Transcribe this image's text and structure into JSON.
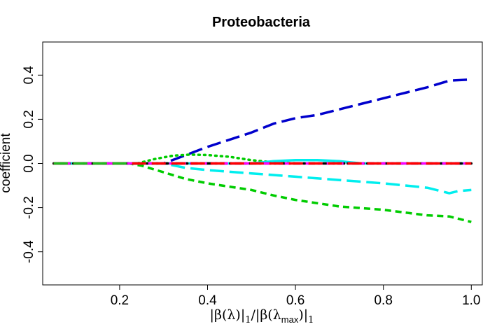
{
  "chart_data": {
    "type": "line",
    "title": "Proteobacteria",
    "xlabel": "|β(λ)|1/|β(λmax)|1",
    "xlabel_parts": {
      "bar1": "|",
      "beta1": "β(λ)",
      "bar2": "|",
      "sub1": "1",
      "slash": "/",
      "bar3": "|",
      "beta2": "β(λ",
      "sub_max": "max",
      "close": ")",
      "bar4": "|",
      "sub2": "1"
    },
    "ylabel": "coefficient",
    "xlim": [
      0.025,
      1.025
    ],
    "ylim": [
      -0.55,
      0.55
    ],
    "xticks": [
      0.2,
      0.4,
      0.6,
      0.8,
      1.0
    ],
    "xtick_labels": [
      "0.2",
      "0.4",
      "0.6",
      "0.8",
      "1.0"
    ],
    "yticks": [
      -0.4,
      -0.2,
      0.0,
      0.2,
      0.4
    ],
    "ytick_labels": [
      "-0.4",
      "-0.2",
      "0.0",
      "0.2",
      "0.4"
    ],
    "grid": false,
    "series": [
      {
        "color": "#0000cc",
        "dash": "long",
        "x": [
          0.05,
          0.3,
          0.4,
          0.5,
          0.55,
          0.6,
          0.65,
          0.7,
          0.8,
          0.9,
          0.95,
          1.0
        ],
        "y": [
          0.0,
          0.0,
          0.075,
          0.14,
          0.18,
          0.205,
          0.22,
          0.245,
          0.295,
          0.345,
          0.375,
          0.38
        ]
      },
      {
        "color": "#00cc00",
        "dash": "short",
        "x": [
          0.05,
          0.22,
          0.25,
          0.3,
          0.35,
          0.4,
          0.5,
          0.55,
          0.6,
          0.7,
          0.8,
          0.9,
          0.95,
          1.0
        ],
        "y": [
          0.0,
          0.0,
          -0.01,
          -0.04,
          -0.07,
          -0.09,
          -0.12,
          -0.145,
          -0.165,
          -0.195,
          -0.21,
          -0.235,
          -0.24,
          -0.265
        ]
      },
      {
        "color": "#00eeee",
        "dash": "long",
        "x": [
          0.05,
          0.3,
          0.35,
          0.4,
          0.5,
          0.6,
          0.7,
          0.8,
          0.9,
          0.95,
          0.97,
          1.0
        ],
        "y": [
          0.0,
          0.0,
          -0.02,
          -0.03,
          -0.045,
          -0.06,
          -0.075,
          -0.09,
          -0.11,
          -0.135,
          -0.125,
          -0.12
        ]
      },
      {
        "color": "#00cc00",
        "dash": "dotted",
        "x": [
          0.05,
          0.24,
          0.28,
          0.32,
          0.36,
          0.4,
          0.45,
          0.5,
          0.55,
          0.6
        ],
        "y": [
          0.0,
          0.0,
          0.02,
          0.035,
          0.04,
          0.038,
          0.03,
          0.015,
          0.005,
          0.0
        ]
      },
      {
        "color": "#00eeee",
        "dash": "solid",
        "x": [
          0.05,
          0.5,
          0.55,
          0.6,
          0.65,
          0.7,
          0.75,
          1.0
        ],
        "y": [
          0.0,
          0.0,
          0.01,
          0.015,
          0.015,
          0.01,
          0.0,
          0.0
        ]
      },
      {
        "color": "#000000",
        "dash": "dotdash",
        "x": [
          0.05,
          1.0
        ],
        "y": [
          0.0,
          0.0
        ]
      },
      {
        "color": "#ff00ff",
        "dash": "short",
        "x": [
          0.05,
          1.0
        ],
        "y": [
          0.0,
          0.0
        ]
      },
      {
        "color": "#ff0000",
        "dash": "long",
        "x": [
          0.05,
          1.0
        ],
        "y": [
          0.0,
          0.0
        ]
      },
      {
        "color": "#22bb22",
        "dash": "long",
        "x": [
          0.05,
          0.22
        ],
        "y": [
          0.0,
          0.0
        ]
      }
    ]
  }
}
